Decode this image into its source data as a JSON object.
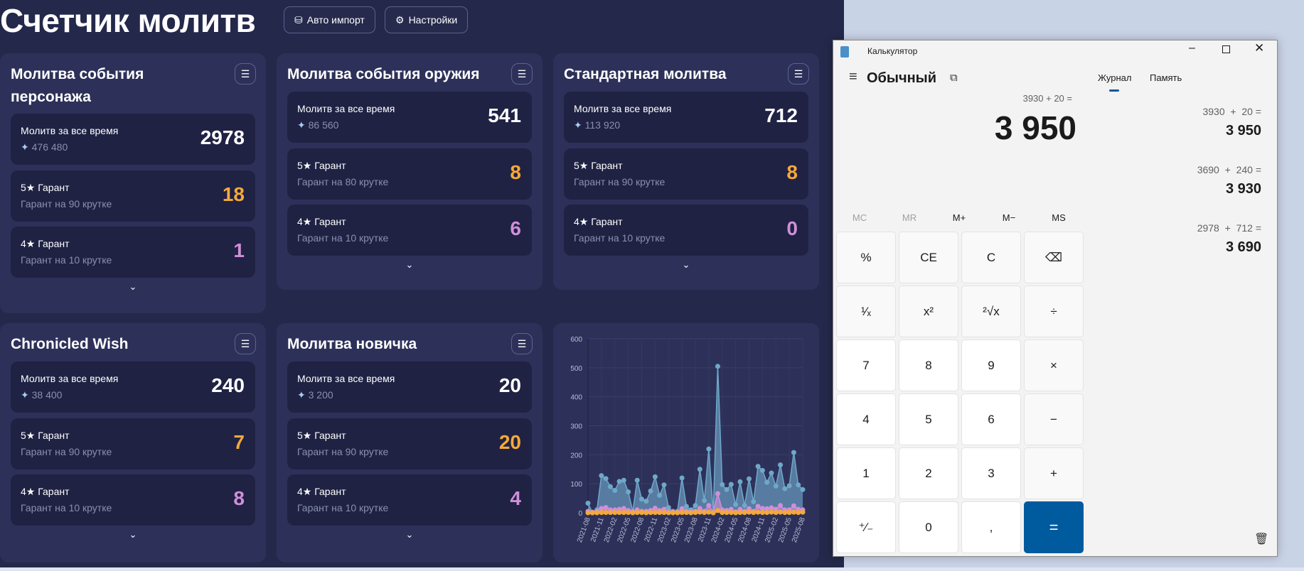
{
  "app": {
    "title": "Счетчик молитв",
    "auto_import": "Авто импорт",
    "settings": "Настройки"
  },
  "cards": [
    {
      "title": "Молитва события персонажа",
      "total_label": "Молитв за все время",
      "primos": "476 480",
      "total": "2978",
      "g5_label": "5★ Гарант",
      "g5_sub": "Гарант на 90 крутке",
      "g5": "18",
      "g4_label": "4★ Гарант",
      "g4_sub": "Гарант на 10 крутке",
      "g4": "1"
    },
    {
      "title": "Молитва события оружия",
      "total_label": "Молитв за все время",
      "primos": "86 560",
      "total": "541",
      "g5_label": "5★ Гарант",
      "g5_sub": "Гарант на 80 крутке",
      "g5": "8",
      "g4_label": "4★ Гарант",
      "g4_sub": "Гарант на 10 крутке",
      "g4": "6"
    },
    {
      "title": "Стандартная молитва",
      "total_label": "Молитв за все время",
      "primos": "113 920",
      "total": "712",
      "g5_label": "5★ Гарант",
      "g5_sub": "Гарант на 90 крутке",
      "g5": "8",
      "g4_label": "4★ Гарант",
      "g4_sub": "Гарант на 10 крутке",
      "g4": "0"
    },
    {
      "title": "Chronicled Wish",
      "total_label": "Молитв за все время",
      "primos": "38 400",
      "total": "240",
      "g5_label": "5★ Гарант",
      "g5_sub": "Гарант на 90 крутке",
      "g5": "7",
      "g4_label": "4★ Гарант",
      "g4_sub": "Гарант на 10 крутке",
      "g4": "8"
    },
    {
      "title": "Молитва новичка",
      "total_label": "Молитв за все время",
      "primos": "3 200",
      "total": "20",
      "g5_label": "5★ Гарант",
      "g5_sub": "Гарант на 90 крутке",
      "g5": "20",
      "g4_label": "4★ Гарант",
      "g4_sub": "Гарант на 10 крутке",
      "g4": "4"
    }
  ],
  "colors": {
    "gold": "#f5a93a",
    "purple": "#d08fd8",
    "blue": "#6fa8c8"
  },
  "chart_data": {
    "type": "area",
    "ylim": [
      0,
      600
    ],
    "yticks": [
      "0",
      "100",
      "200",
      "300",
      "400",
      "500",
      "600"
    ],
    "xticks": [
      "2021-08",
      "2021-11",
      "2022-02",
      "2022-05",
      "2022-08",
      "2022-11",
      "2023-02",
      "2023-05",
      "2023-08",
      "2023-11",
      "2024-02",
      "2024-05",
      "2024-08",
      "2024-11",
      "2025-02",
      "2025-05",
      "2025-08"
    ],
    "series": [
      {
        "name": "total",
        "color": "#6fa8c8",
        "values": [
          33,
          0,
          10,
          128,
          118,
          90,
          77,
          108,
          112,
          72,
          5,
          112,
          47,
          40,
          75,
          124,
          60,
          96,
          18,
          5,
          5,
          120,
          22,
          10,
          25,
          150,
          42,
          220,
          0,
          505,
          97,
          80,
          98,
          28,
          107,
          25,
          117,
          38,
          160,
          146,
          105,
          137,
          92,
          165,
          83,
          93,
          208,
          96,
          80
        ]
      },
      {
        "name": "4star",
        "color": "#d08fd8",
        "values": [
          5,
          2,
          5,
          15,
          18,
          10,
          10,
          12,
          15,
          8,
          3,
          10,
          5,
          5,
          8,
          16,
          8,
          12,
          3,
          2,
          2,
          14,
          5,
          3,
          5,
          15,
          5,
          25,
          2,
          66,
          10,
          8,
          12,
          3,
          12,
          5,
          14,
          5,
          22,
          15,
          14,
          17,
          12,
          25,
          10,
          10,
          24,
          12,
          10
        ]
      },
      {
        "name": "5star",
        "color": "#f5a93a",
        "values": [
          0,
          0,
          0,
          1,
          1,
          1,
          1,
          1,
          1,
          1,
          0,
          1,
          1,
          0,
          1,
          1,
          1,
          1,
          0,
          0,
          0,
          1,
          1,
          0,
          1,
          2,
          1,
          2,
          0,
          8,
          1,
          1,
          1,
          0,
          1,
          1,
          2,
          1,
          2,
          1,
          1,
          2,
          1,
          2,
          1,
          1,
          2,
          1,
          2
        ]
      }
    ]
  },
  "calc": {
    "title": "Калькулятор",
    "mode": "Обычный",
    "tab_history": "Журнал",
    "tab_memory": "Память",
    "expression": "3930 + 20 =",
    "display": "3 950",
    "memory": [
      "MC",
      "MR",
      "M+",
      "M−",
      "MS"
    ],
    "keys": [
      "%",
      "CE",
      "C",
      "⌫",
      "¹⁄ₓ",
      "x²",
      "²√x",
      "÷",
      "7",
      "8",
      "9",
      "×",
      "4",
      "5",
      "6",
      "−",
      "1",
      "2",
      "3",
      "+",
      "⁺∕₋",
      "0",
      ",",
      "="
    ],
    "history": [
      {
        "expr": "3930  +  20 =",
        "result": "3 950"
      },
      {
        "expr": "3690  +  240 =",
        "result": "3 930"
      },
      {
        "expr": "2978  +  712 =",
        "result": "3 690"
      }
    ]
  }
}
